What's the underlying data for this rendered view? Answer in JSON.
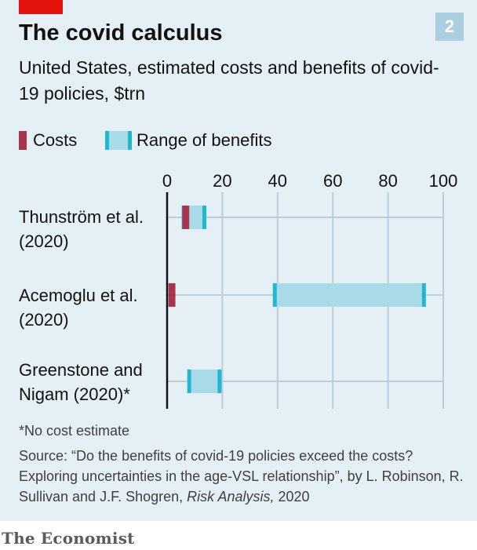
{
  "figure_number": "2",
  "title": "The covid calculus",
  "subtitle": "United States, estimated costs and benefits of covid-19 policies, $trn",
  "legend": {
    "costs": "Costs",
    "range": "Range of benefits"
  },
  "footnote": "*No cost estimate",
  "source_prefix": "Source: “Do the benefits of covid-19 policies exceed the costs? Exploring uncertainties in the age-VSL relationship”, by L. Robinson, R. Sullivan and J.F. Shogren, ",
  "source_journal": "Risk Analysis,",
  "source_year": " 2020",
  "publisher": "The Economist",
  "colors": {
    "background": "#e5f0f6",
    "costs": "#a8344f",
    "range_fill": "#a8dae8",
    "range_edge": "#1fb8d0",
    "gridline": "#bccdd7",
    "brand_red": "#e3120b"
  },
  "chart_data": {
    "type": "bar",
    "orientation": "horizontal",
    "xlim": [
      0,
      100
    ],
    "xticks": [
      0,
      20,
      40,
      60,
      80,
      100
    ],
    "unit": "$trn",
    "grid": true,
    "legend_position": "top-left",
    "categories": [
      [
        "Thunström et al.",
        "(2020)"
      ],
      [
        "Acemoglu et al.",
        "(2020)"
      ],
      [
        "Greenstone and",
        "Nigam (2020)*"
      ]
    ],
    "series": [
      {
        "name": "Costs",
        "values": [
          [
            5.5,
            8
          ],
          [
            0.5,
            3
          ],
          null
        ]
      },
      {
        "name": "Range of benefits",
        "values": [
          [
            6,
            13.5
          ],
          [
            39,
            93
          ],
          [
            8,
            19
          ]
        ]
      }
    ]
  }
}
